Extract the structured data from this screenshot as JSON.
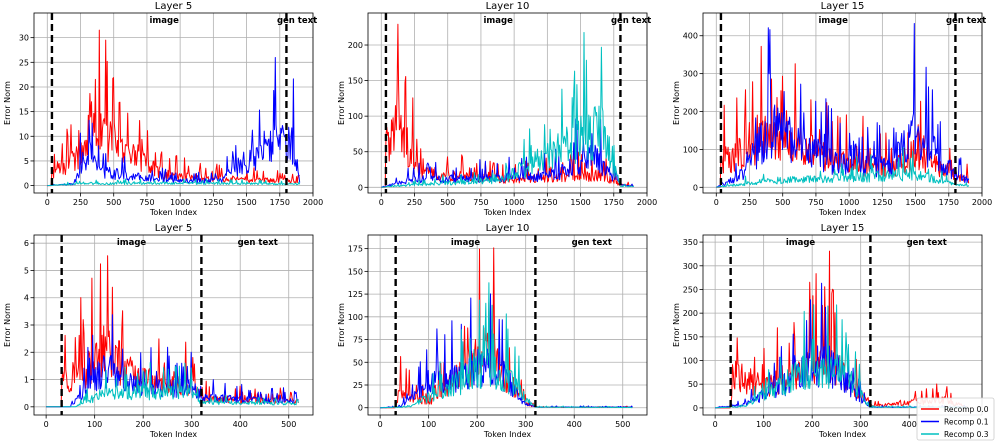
{
  "legend": {
    "position": "bottom-right",
    "entries": [
      {
        "label": "Recomp 0.0",
        "color": "#ff0000"
      },
      {
        "label": "Recomp 0.1",
        "color": "#0000ff"
      },
      {
        "label": "Recomp 0.3",
        "color": "#00c0c0"
      }
    ]
  },
  "chart_data": [
    {
      "type": "line",
      "title": "Layer 5",
      "xlabel": "Token Index",
      "ylabel": "Error Norm",
      "xlim": [
        -100,
        2000
      ],
      "ylim": [
        -1.5,
        35
      ],
      "xticks": [
        0,
        250,
        500,
        750,
        1000,
        1250,
        1500,
        1750,
        2000
      ],
      "yticks": [
        0,
        5,
        10,
        15,
        20,
        25,
        30
      ],
      "vlines": [
        35,
        1800
      ],
      "annotations": [
        {
          "text": "image",
          "x": 880
        },
        {
          "text": "gen text",
          "x": 1880
        }
      ],
      "series": [
        {
          "name": "Recomp 0.0",
          "x": [
            0,
            34,
            35,
            300,
            330,
            900,
            1300,
            1700,
            1800,
            1900
          ],
          "y": [
            0,
            0,
            8,
            20,
            33,
            6,
            4,
            3,
            3,
            2
          ]
        },
        {
          "name": "Recomp 0.1",
          "x": [
            0,
            200,
            300,
            400,
            900,
            1300,
            1670,
            1860,
            1900
          ],
          "y": [
            0,
            1,
            20,
            8,
            3,
            3,
            24,
            23,
            2
          ]
        },
        {
          "name": "Recomp 0.3",
          "x": [
            0,
            250,
            900,
            1800,
            1900
          ],
          "y": [
            0,
            1,
            1.5,
            1,
            1
          ]
        }
      ]
    },
    {
      "type": "line",
      "title": "Layer 10",
      "xlabel": "Token Index",
      "ylabel": "Error Norm",
      "xlim": [
        -100,
        2000
      ],
      "ylim": [
        -8,
        245
      ],
      "xticks": [
        0,
        250,
        500,
        750,
        1000,
        1250,
        1500,
        1750,
        2000
      ],
      "yticks": [
        0,
        50,
        100,
        150,
        200
      ],
      "vlines": [
        35,
        1800
      ],
      "annotations": [
        {
          "text": "image",
          "x": 880
        },
        {
          "text": "gen text",
          "x": 1880
        }
      ],
      "series": [
        {
          "name": "Recomp 0.0",
          "x": [
            0,
            34,
            35,
            130,
            300,
            900,
            1300,
            1650,
            1800,
            1900
          ],
          "y": [
            0,
            0,
            190,
            235,
            60,
            30,
            40,
            50,
            10,
            5
          ]
        },
        {
          "name": "Recomp 0.1",
          "x": [
            0,
            200,
            900,
            1300,
            1600,
            1800,
            1900
          ],
          "y": [
            0,
            30,
            40,
            50,
            120,
            10,
            5
          ]
        },
        {
          "name": "Recomp 0.3",
          "x": [
            0,
            250,
            900,
            1670,
            1800,
            1900
          ],
          "y": [
            0,
            10,
            30,
            237,
            5,
            3
          ]
        }
      ]
    },
    {
      "type": "line",
      "title": "Layer 15",
      "xlabel": "Token Index",
      "ylabel": "Error Norm",
      "xlim": [
        -100,
        2000
      ],
      "ylim": [
        -15,
        460
      ],
      "xticks": [
        0,
        250,
        500,
        750,
        1000,
        1250,
        1500,
        1750,
        2000
      ],
      "yticks": [
        0,
        100,
        200,
        300,
        400
      ],
      "vlines": [
        35,
        1800
      ],
      "annotations": [
        {
          "text": "image",
          "x": 880
        },
        {
          "text": "gen text",
          "x": 1880
        }
      ],
      "series": [
        {
          "name": "Recomp 0.0",
          "x": [
            0,
            34,
            35,
            300,
            380,
            900,
            1300,
            1500,
            1800,
            1900
          ],
          "y": [
            0,
            0,
            200,
            300,
            390,
            200,
            150,
            250,
            100,
            50
          ]
        },
        {
          "name": "Recomp 0.1",
          "x": [
            0,
            200,
            400,
            900,
            1300,
            1500,
            1800,
            1900
          ],
          "y": [
            0,
            100,
            440,
            180,
            150,
            410,
            100,
            50
          ]
        },
        {
          "name": "Recomp 0.3",
          "x": [
            0,
            400,
            900,
            1500,
            1800,
            1900
          ],
          "y": [
            0,
            50,
            70,
            100,
            20,
            10
          ]
        }
      ]
    },
    {
      "type": "line",
      "title": "Layer 5",
      "xlabel": "Token Index",
      "ylabel": "Error Norm",
      "xlim": [
        -25,
        550
      ],
      "ylim": [
        -0.3,
        6.3
      ],
      "xticks": [
        0,
        100,
        200,
        300,
        400,
        500
      ],
      "yticks": [
        0,
        1,
        2,
        3,
        4,
        5,
        6
      ],
      "vlines": [
        32,
        320
      ],
      "annotations": [
        {
          "text": "image",
          "x": 176
        },
        {
          "text": "gen text",
          "x": 436
        }
      ],
      "series": [
        {
          "name": "Recomp 0.0",
          "x": [
            0,
            31,
            32,
            100,
            120,
            200,
            300,
            320,
            400,
            520
          ],
          "y": [
            0,
            0,
            2.8,
            4.5,
            5.8,
            3,
            2.2,
            1,
            0.7,
            0.6
          ]
        },
        {
          "name": "Recomp 0.1",
          "x": [
            0,
            50,
            120,
            200,
            300,
            320,
            400,
            520
          ],
          "y": [
            0,
            0,
            4,
            2,
            2,
            1,
            0.8,
            0.6
          ]
        },
        {
          "name": "Recomp 0.3",
          "x": [
            0,
            60,
            120,
            300,
            320,
            400,
            520
          ],
          "y": [
            0,
            0,
            1.5,
            1.5,
            0.5,
            0.4,
            0.4
          ]
        }
      ]
    },
    {
      "type": "line",
      "title": "Layer 10",
      "xlabel": "Token Index",
      "ylabel": "Error Norm",
      "xlim": [
        -25,
        550
      ],
      "ylim": [
        -8,
        190
      ],
      "xticks": [
        0,
        100,
        200,
        300,
        400,
        500
      ],
      "yticks": [
        0,
        25,
        50,
        75,
        100,
        125,
        150,
        175
      ],
      "vlines": [
        32,
        320
      ],
      "annotations": [
        {
          "text": "image",
          "x": 176
        },
        {
          "text": "gen text",
          "x": 436
        }
      ],
      "series": [
        {
          "name": "Recomp 0.0",
          "x": [
            0,
            31,
            40,
            100,
            175,
            225,
            250,
            300,
            320,
            520
          ],
          "y": [
            0,
            0,
            55,
            15,
            120,
            188,
            115,
            15,
            2,
            2
          ]
        },
        {
          "name": "Recomp 0.1",
          "x": [
            0,
            40,
            115,
            175,
            225,
            250,
            300,
            320,
            520
          ],
          "y": [
            0,
            3,
            80,
            100,
            150,
            110,
            10,
            2,
            2
          ]
        },
        {
          "name": "Recomp 0.3",
          "x": [
            0,
            60,
            175,
            225,
            250,
            320,
            520
          ],
          "y": [
            0,
            3,
            90,
            130,
            110,
            2,
            1
          ]
        }
      ]
    },
    {
      "type": "line",
      "title": "Layer 15",
      "xlabel": "Token Index",
      "ylabel": "Error Norm",
      "xlim": [
        -25,
        550
      ],
      "ylim": [
        -15,
        365
      ],
      "xticks": [
        0,
        100,
        200,
        300,
        400
      ],
      "yticks": [
        0,
        50,
        100,
        150,
        200,
        250,
        300,
        350
      ],
      "vlines": [
        32,
        320
      ],
      "annotations": [
        {
          "text": "image",
          "x": 176
        },
        {
          "text": "gen text",
          "x": 436
        }
      ],
      "series": [
        {
          "name": "Recomp 0.0",
          "x": [
            0,
            31,
            40,
            100,
            175,
            225,
            250,
            300,
            320,
            470,
            520
          ],
          "y": [
            0,
            0,
            200,
            130,
            215,
            350,
            250,
            100,
            10,
            50,
            5
          ]
        },
        {
          "name": "Recomp 0.1",
          "x": [
            0,
            60,
            175,
            225,
            250,
            300,
            320,
            520
          ],
          "y": [
            0,
            20,
            200,
            280,
            230,
            60,
            5,
            5
          ]
        },
        {
          "name": "Recomp 0.3",
          "x": [
            0,
            60,
            175,
            225,
            260,
            320,
            520
          ],
          "y": [
            0,
            10,
            210,
            220,
            230,
            5,
            3
          ]
        }
      ]
    }
  ]
}
